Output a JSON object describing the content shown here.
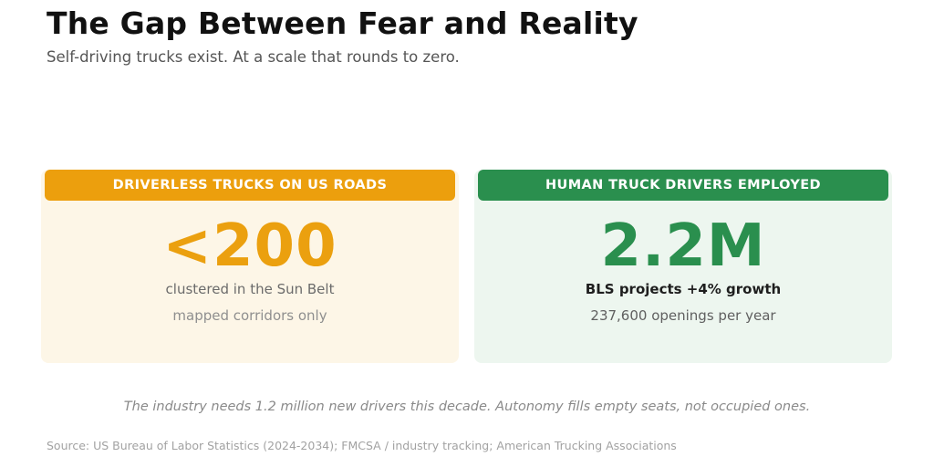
{
  "header": {
    "title": "The Gap Between Fear and Reality",
    "subtitle": "Self-driving trucks exist. At a scale that rounds to zero."
  },
  "cards": [
    {
      "label": "DRIVERLESS TRUCKS ON US ROADS",
      "value": "<200",
      "detail": "clustered in the Sun Belt",
      "note": "mapped corridors only",
      "accent_color": "#eba00f",
      "background_color": "#fdf6e7"
    },
    {
      "label": "HUMAN TRUCK DRIVERS EMPLOYED",
      "value": "2.2M",
      "detail": "BLS projects +4% growth",
      "note": "237,600 openings per year",
      "accent_color": "#2a8f4e",
      "background_color": "#edf6ef"
    }
  ],
  "footer": {
    "takeaway": "The industry needs 1.2 million new drivers this decade. Autonomy fills empty seats, not occupied ones.",
    "source": "Source: US Bureau of Labor Statistics (2024-2034); FMCSA / industry tracking; American Trucking Associations"
  }
}
